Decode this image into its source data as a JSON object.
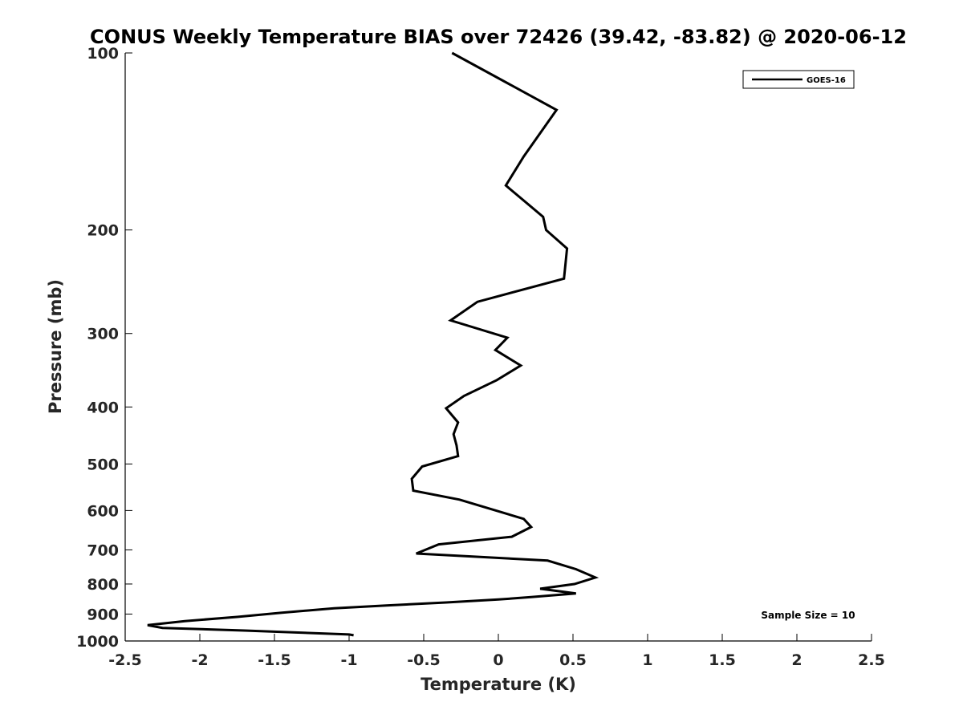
{
  "chart_data": {
    "type": "line",
    "title": "CONUS Weekly Temperature BIAS over 72426 (39.42, -83.82) @ 2020-06-12",
    "xlabel": "Temperature (K)",
    "ylabel": "Pressure (mb)",
    "xlim": [
      -2.5,
      2.5
    ],
    "ylim": [
      100,
      1000
    ],
    "yscale": "log",
    "yinverted": true,
    "xticks": [
      -2.5,
      -2,
      -1.5,
      -1,
      -0.5,
      0,
      0.5,
      1,
      1.5,
      2,
      2.5
    ],
    "xtick_labels": [
      "-2.5",
      "-2",
      "-1.5",
      "-1",
      "-0.5",
      "0",
      "0.5",
      "1",
      "1.5",
      "2",
      "2.5"
    ],
    "yticks": [
      100,
      200,
      300,
      400,
      500,
      600,
      700,
      800,
      900,
      1000
    ],
    "ytick_labels": [
      "100",
      "200",
      "300",
      "400",
      "500",
      "600",
      "700",
      "800",
      "900",
      "1000"
    ],
    "grid": false,
    "legend": {
      "position": "top-right",
      "entries": [
        "GOES-16"
      ]
    },
    "annotation": "Sample Size = 10",
    "series": [
      {
        "name": "GOES-16",
        "color": "#000000",
        "points": [
          [
            -0.31,
            100
          ],
          [
            0.39,
            125
          ],
          [
            0.17,
            150
          ],
          [
            0.05,
            168
          ],
          [
            0.3,
            190
          ],
          [
            0.32,
            200
          ],
          [
            0.46,
            215
          ],
          [
            0.44,
            242
          ],
          [
            -0.14,
            265
          ],
          [
            -0.32,
            285
          ],
          [
            0.06,
            305
          ],
          [
            -0.02,
            320
          ],
          [
            0.15,
            340
          ],
          [
            -0.01,
            360
          ],
          [
            -0.23,
            383
          ],
          [
            -0.35,
            402
          ],
          [
            -0.27,
            425
          ],
          [
            -0.3,
            445
          ],
          [
            -0.28,
            465
          ],
          [
            -0.27,
            485
          ],
          [
            -0.51,
            505
          ],
          [
            -0.58,
            530
          ],
          [
            -0.57,
            555
          ],
          [
            -0.26,
            575
          ],
          [
            0.17,
            620
          ],
          [
            0.22,
            640
          ],
          [
            0.09,
            665
          ],
          [
            -0.4,
            685
          ],
          [
            -0.55,
            710
          ],
          [
            0.33,
            730
          ],
          [
            0.52,
            755
          ],
          [
            0.65,
            780
          ],
          [
            0.51,
            800
          ],
          [
            0.28,
            815
          ],
          [
            0.52,
            830
          ],
          [
            0.22,
            842
          ],
          [
            0.0,
            850
          ],
          [
            -0.35,
            860
          ],
          [
            -0.75,
            870
          ],
          [
            -1.1,
            880
          ],
          [
            -1.45,
            895
          ],
          [
            -1.75,
            910
          ],
          [
            -2.1,
            925
          ],
          [
            -2.35,
            940
          ],
          [
            -2.25,
            950
          ],
          [
            -1.7,
            960
          ],
          [
            -1.0,
            975
          ],
          [
            -0.97,
            978
          ]
        ]
      }
    ]
  }
}
